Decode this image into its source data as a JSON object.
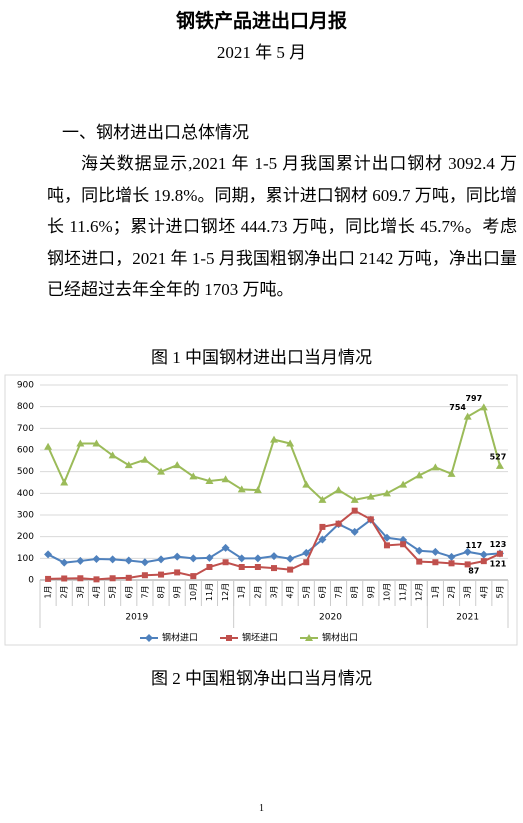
{
  "header": {
    "title": "钢铁产品进出口月报",
    "date": "2021 年 5 月"
  },
  "section": {
    "heading": "一、钢材进出口总体情况",
    "paragraph": "海关数据显示,2021 年 1-5 月我国累计出口钢材 3092.4 万吨，同比增长 19.8%。同期，累计进口钢材 609.7 万吨，同比增长 11.6%；累计进口钢坯 444.73 万吨，同比增长 45.7%。考虑钢坯进口，2021 年 1-5 月我国粗钢净出口 2142 万吨，净出口量已经超过去年全年的 1703 万吨。"
  },
  "figure1_caption": "图 1 中国钢材进出口当月情况",
  "chart_data": {
    "type": "line",
    "categories": [
      "1月",
      "2月",
      "3月",
      "4月",
      "5月",
      "6月",
      "7月",
      "8月",
      "9月",
      "10月",
      "11月",
      "12月",
      "1月",
      "2月",
      "3月",
      "4月",
      "5月",
      "6月",
      "7月",
      "8月",
      "9月",
      "10月",
      "11月",
      "12月",
      "1月",
      "2月",
      "3月",
      "4月",
      "5月"
    ],
    "groups": [
      "2019",
      "2020",
      "2021"
    ],
    "ylim": [
      0,
      900
    ],
    "yticks": [
      0,
      100,
      200,
      300,
      400,
      500,
      600,
      700,
      800,
      900
    ],
    "grid": true,
    "legend": "bottom",
    "series": [
      {
        "name": "钢材进口",
        "color": "#4f81bd",
        "marker": "diamond",
        "values": [
          118,
          80,
          88,
          97,
          95,
          90,
          82,
          95,
          108,
          100,
          102,
          148,
          100,
          100,
          110,
          98,
          125,
          187,
          258,
          222,
          278,
          195,
          185,
          135,
          130,
          107,
          130,
          117,
          123
        ],
        "label_indices": [
          27,
          28
        ]
      },
      {
        "name": "钢坯进口",
        "color": "#c0504d",
        "marker": "square",
        "values": [
          5,
          7,
          8,
          3,
          8,
          10,
          22,
          25,
          35,
          18,
          60,
          82,
          60,
          60,
          55,
          48,
          82,
          245,
          260,
          320,
          280,
          160,
          165,
          85,
          82,
          77,
          72,
          87,
          121
        ],
        "label_indices": [
          27,
          28
        ]
      },
      {
        "name": "钢材出口",
        "color": "#9bbb59",
        "marker": "triangle",
        "values": [
          615,
          450,
          630,
          630,
          575,
          530,
          555,
          500,
          530,
          478,
          457,
          465,
          418,
          415,
          648,
          630,
          440,
          370,
          415,
          370,
          385,
          400,
          440,
          483,
          520,
          490,
          754,
          797,
          527
        ],
        "label_indices": [
          26,
          27,
          28
        ]
      }
    ]
  },
  "figure2_caption": "图 2 中国粗钢净出口当月情况",
  "page_number": "1"
}
